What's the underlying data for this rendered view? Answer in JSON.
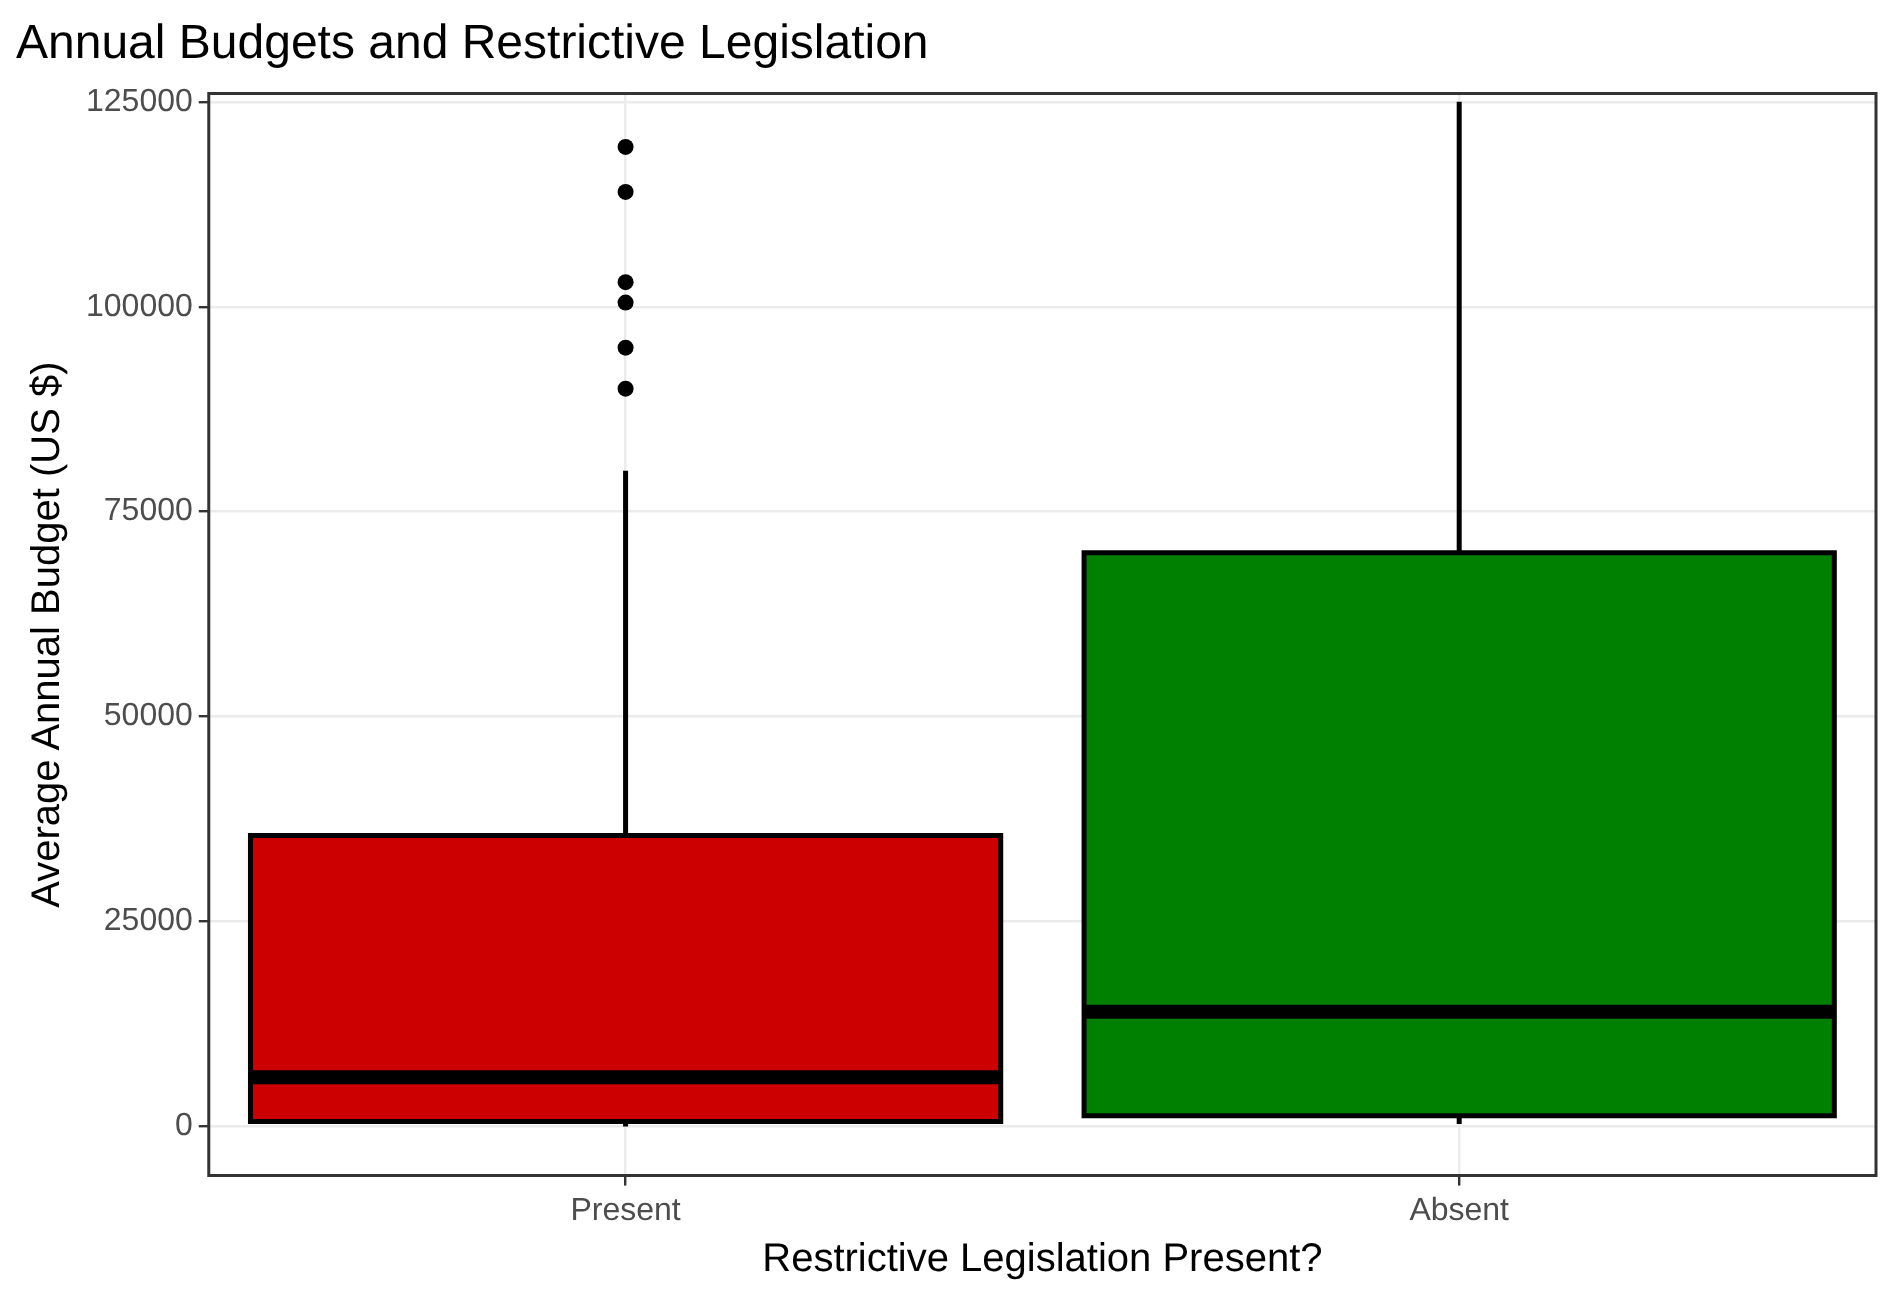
{
  "chart_data": {
    "type": "box",
    "title": "Annual Budgets and Restrictive Legislation",
    "xlabel": "Restrictive Legislation Present?",
    "ylabel": "Average Annual Budget (US $)",
    "categories": [
      "Present",
      "Absent"
    ],
    "colors": [
      "#cc0000",
      "#008000"
    ],
    "boxes": [
      {
        "low": 0,
        "q1": 600,
        "median": 6000,
        "q3": 35500,
        "high": 80000,
        "outliers": [
          90000,
          95000,
          100500,
          103000,
          114000,
          119500
        ]
      },
      {
        "low": 300,
        "q1": 1300,
        "median": 14000,
        "q3": 70000,
        "high": 125000
      }
    ],
    "ylim": [
      -6000,
      126000
    ],
    "yticks": [
      0,
      25000,
      50000,
      75000,
      100000,
      125000
    ],
    "grid": true
  }
}
